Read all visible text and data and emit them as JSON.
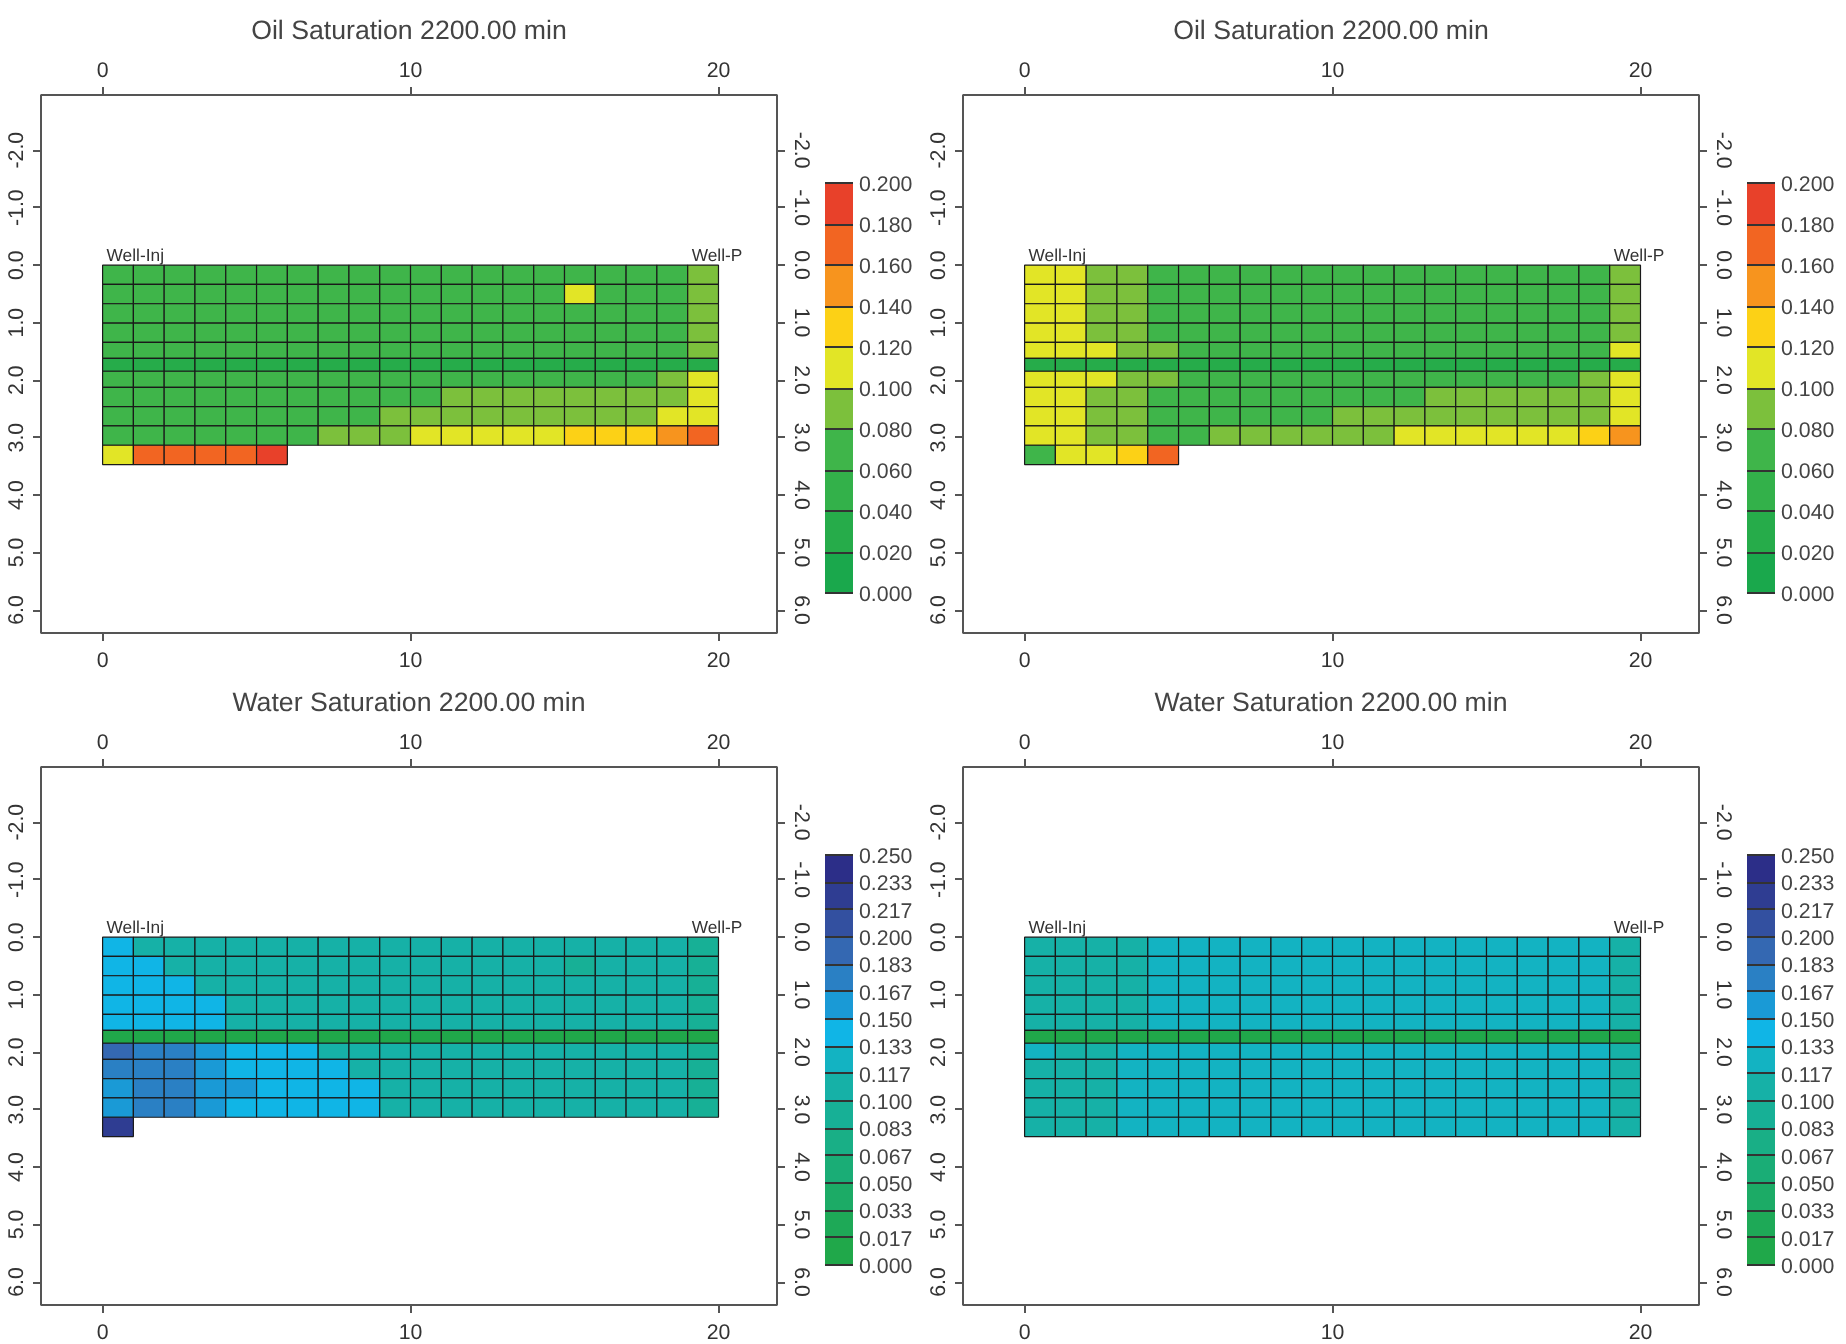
{
  "chart_data": [
    {
      "type": "heatmap",
      "title": "Oil Saturation 2200.00 min",
      "x": [
        0.5,
        1.5,
        2.5,
        3.5,
        4.5,
        5.5,
        6.5,
        7.5,
        8.5,
        9.5,
        10.5,
        11.5,
        12.5,
        13.5,
        14.5,
        15.5,
        16.5,
        17.5,
        18.5,
        19.5
      ],
      "y": [
        0.168,
        0.504,
        0.84,
        1.176,
        1.512,
        1.735,
        1.958,
        2.294,
        2.63,
        2.966,
        3.302
      ],
      "cells": [
        [
          0.07,
          0.07,
          0.07,
          0.07,
          0.07,
          0.07,
          0.07,
          0.07,
          0.07,
          0.07,
          0.07,
          0.07,
          0.07,
          0.07,
          0.07,
          0.07,
          0.07,
          0.07,
          0.07,
          0.09
        ],
        [
          0.07,
          0.07,
          0.07,
          0.07,
          0.07,
          0.07,
          0.07,
          0.07,
          0.07,
          0.07,
          0.07,
          0.07,
          0.07,
          0.07,
          0.07,
          0.11,
          0.07,
          0.07,
          0.07,
          0.09
        ],
        [
          0.07,
          0.07,
          0.07,
          0.07,
          0.07,
          0.07,
          0.07,
          0.07,
          0.07,
          0.07,
          0.07,
          0.07,
          0.07,
          0.07,
          0.07,
          0.07,
          0.07,
          0.07,
          0.07,
          0.09
        ],
        [
          0.07,
          0.07,
          0.07,
          0.07,
          0.07,
          0.07,
          0.07,
          0.07,
          0.07,
          0.07,
          0.07,
          0.07,
          0.07,
          0.07,
          0.07,
          0.07,
          0.07,
          0.07,
          0.07,
          0.09
        ],
        [
          0.07,
          0.07,
          0.07,
          0.07,
          0.07,
          0.07,
          0.07,
          0.07,
          0.07,
          0.07,
          0.07,
          0.07,
          0.07,
          0.07,
          0.07,
          0.07,
          0.07,
          0.07,
          0.07,
          0.09
        ],
        [
          0.03,
          0.03,
          0.03,
          0.03,
          0.03,
          0.03,
          0.03,
          0.03,
          0.03,
          0.03,
          0.03,
          0.03,
          0.03,
          0.03,
          0.03,
          0.03,
          0.03,
          0.03,
          0.03,
          0.03
        ],
        [
          0.07,
          0.07,
          0.07,
          0.07,
          0.07,
          0.07,
          0.07,
          0.07,
          0.07,
          0.07,
          0.07,
          0.07,
          0.07,
          0.07,
          0.07,
          0.07,
          0.07,
          0.07,
          0.09,
          0.11
        ],
        [
          0.07,
          0.07,
          0.07,
          0.07,
          0.07,
          0.07,
          0.07,
          0.07,
          0.07,
          0.07,
          0.07,
          0.09,
          0.09,
          0.09,
          0.09,
          0.09,
          0.09,
          0.09,
          0.09,
          0.11
        ],
        [
          0.07,
          0.07,
          0.07,
          0.07,
          0.07,
          0.07,
          0.07,
          0.07,
          0.07,
          0.09,
          0.09,
          0.09,
          0.09,
          0.09,
          0.09,
          0.09,
          0.09,
          0.09,
          0.11,
          0.11
        ],
        [
          0.07,
          0.07,
          0.07,
          0.07,
          0.07,
          0.07,
          0.07,
          0.09,
          0.09,
          0.09,
          0.11,
          0.11,
          0.11,
          0.11,
          0.11,
          0.13,
          0.13,
          0.13,
          0.15,
          0.17
        ],
        [
          0.11,
          0.17,
          0.17,
          0.17,
          0.17,
          0.19,
          null,
          null,
          null,
          null,
          null,
          null,
          null,
          null,
          null,
          null,
          null,
          null,
          null,
          null
        ]
      ],
      "xlim": [
        -2,
        21.9
      ],
      "xticks": [
        0,
        10,
        20
      ],
      "x2lim": [
        -2,
        21.9
      ],
      "x2ticks": [
        0,
        10,
        20
      ],
      "ylim": [
        6.4,
        -2.96
      ],
      "yticks": [
        {
          "value": -2,
          "label": "-2.0"
        },
        {
          "value": -1,
          "label": "-1.0"
        },
        {
          "value": 0,
          "label": "0.0"
        },
        {
          "value": 1,
          "label": "1.0"
        },
        {
          "value": 2,
          "label": "2.0"
        },
        {
          "value": 3,
          "label": "3.0"
        },
        {
          "value": 4,
          "label": "4.0"
        },
        {
          "value": 5,
          "label": "5.0"
        },
        {
          "value": 6,
          "label": "6.0"
        }
      ],
      "y2lim": [
        6.4,
        -2.96
      ],
      "y2ticks": [
        {
          "value": -2,
          "label": "-2.0"
        },
        {
          "value": -1,
          "label": "-1.0"
        },
        {
          "value": 0,
          "label": "0.0"
        },
        {
          "value": 1,
          "label": "1.0"
        },
        {
          "value": 2,
          "label": "2.0"
        },
        {
          "value": 3,
          "label": "3.0"
        },
        {
          "value": 4,
          "label": "4.0"
        },
        {
          "value": 5,
          "label": "5.0"
        },
        {
          "value": 6,
          "label": "6.0"
        }
      ],
      "clim": [
        0,
        0.2
      ],
      "cticks": [
        {
          "value": 0,
          "label": "0.000"
        },
        {
          "value": 0.02,
          "label": "0.020"
        },
        {
          "value": 0.04,
          "label": "0.040"
        },
        {
          "value": 0.06,
          "label": "0.060"
        },
        {
          "value": 0.08,
          "label": "0.080"
        },
        {
          "value": 0.1,
          "label": "0.100"
        },
        {
          "value": 0.12,
          "label": "0.120"
        },
        {
          "value": 0.14,
          "label": "0.140"
        },
        {
          "value": 0.16,
          "label": "0.160"
        },
        {
          "value": 0.18,
          "label": "0.180"
        },
        {
          "value": 0.2,
          "label": "0.200"
        }
      ],
      "colors": [
        "#1aa84c",
        "#26ac4a",
        "#33b14a",
        "#3fb54a",
        "#7cc03c",
        "#e2e526",
        "#fcd116",
        "#f7941e",
        "#f26522",
        "#e8412a"
      ],
      "annotations": [
        "Well-Inj",
        "Well-P"
      ]
    },
    {
      "type": "heatmap",
      "title": "Oil Saturation 2200.00 min",
      "x": [
        0.5,
        1.5,
        2.5,
        3.5,
        4.5,
        5.5,
        6.5,
        7.5,
        8.5,
        9.5,
        10.5,
        11.5,
        12.5,
        13.5,
        14.5,
        15.5,
        16.5,
        17.5,
        18.5,
        19.5
      ],
      "y": [
        0.168,
        0.504,
        0.84,
        1.176,
        1.512,
        1.735,
        1.958,
        2.294,
        2.63,
        2.966,
        3.302
      ],
      "cells": [
        [
          0.11,
          0.11,
          0.09,
          0.09,
          0.07,
          0.07,
          0.07,
          0.07,
          0.07,
          0.07,
          0.07,
          0.07,
          0.07,
          0.07,
          0.07,
          0.07,
          0.07,
          0.07,
          0.07,
          0.09
        ],
        [
          0.11,
          0.11,
          0.09,
          0.09,
          0.07,
          0.07,
          0.07,
          0.07,
          0.07,
          0.07,
          0.07,
          0.07,
          0.07,
          0.07,
          0.07,
          0.07,
          0.07,
          0.07,
          0.07,
          0.09
        ],
        [
          0.11,
          0.11,
          0.09,
          0.09,
          0.07,
          0.07,
          0.07,
          0.07,
          0.07,
          0.07,
          0.07,
          0.07,
          0.07,
          0.07,
          0.07,
          0.07,
          0.07,
          0.07,
          0.07,
          0.09
        ],
        [
          0.11,
          0.11,
          0.09,
          0.09,
          0.07,
          0.07,
          0.07,
          0.07,
          0.07,
          0.07,
          0.07,
          0.07,
          0.07,
          0.07,
          0.07,
          0.07,
          0.07,
          0.07,
          0.07,
          0.09
        ],
        [
          0.11,
          0.11,
          0.11,
          0.09,
          0.09,
          0.07,
          0.07,
          0.07,
          0.07,
          0.07,
          0.07,
          0.07,
          0.07,
          0.07,
          0.07,
          0.07,
          0.07,
          0.07,
          0.07,
          0.11
        ],
        [
          0.03,
          0.03,
          0.03,
          0.03,
          0.03,
          0.03,
          0.03,
          0.03,
          0.03,
          0.03,
          0.03,
          0.03,
          0.03,
          0.03,
          0.03,
          0.03,
          0.03,
          0.03,
          0.03,
          0.03
        ],
        [
          0.11,
          0.11,
          0.11,
          0.09,
          0.09,
          0.07,
          0.07,
          0.07,
          0.07,
          0.07,
          0.07,
          0.07,
          0.07,
          0.07,
          0.07,
          0.07,
          0.07,
          0.07,
          0.09,
          0.11
        ],
        [
          0.11,
          0.11,
          0.09,
          0.09,
          0.07,
          0.07,
          0.07,
          0.07,
          0.07,
          0.07,
          0.07,
          0.07,
          0.07,
          0.09,
          0.09,
          0.09,
          0.09,
          0.09,
          0.09,
          0.11
        ],
        [
          0.11,
          0.11,
          0.09,
          0.09,
          0.07,
          0.07,
          0.07,
          0.07,
          0.07,
          0.07,
          0.09,
          0.09,
          0.09,
          0.09,
          0.09,
          0.09,
          0.09,
          0.09,
          0.09,
          0.11
        ],
        [
          0.11,
          0.11,
          0.09,
          0.09,
          0.07,
          0.07,
          0.09,
          0.09,
          0.09,
          0.09,
          0.09,
          0.09,
          0.11,
          0.11,
          0.11,
          0.11,
          0.11,
          0.11,
          0.13,
          0.15
        ],
        [
          0.07,
          0.11,
          0.11,
          0.13,
          0.17,
          null,
          null,
          null,
          null,
          null,
          null,
          null,
          null,
          null,
          null,
          null,
          null,
          null,
          null,
          null
        ]
      ],
      "xlim": [
        -2,
        21.9
      ],
      "xticks": [
        0,
        10,
        20
      ],
      "x2lim": [
        -2,
        21.9
      ],
      "x2ticks": [
        0,
        10,
        20
      ],
      "ylim": [
        6.4,
        -2.96
      ],
      "yticks": [
        {
          "value": -2,
          "label": "-2.0"
        },
        {
          "value": -1,
          "label": "-1.0"
        },
        {
          "value": 0,
          "label": "0.0"
        },
        {
          "value": 1,
          "label": "1.0"
        },
        {
          "value": 2,
          "label": "2.0"
        },
        {
          "value": 3,
          "label": "3.0"
        },
        {
          "value": 4,
          "label": "4.0"
        },
        {
          "value": 5,
          "label": "5.0"
        },
        {
          "value": 6,
          "label": "6.0"
        }
      ],
      "y2lim": [
        6.4,
        -2.96
      ],
      "y2ticks": [
        {
          "value": -2,
          "label": "-2.0"
        },
        {
          "value": -1,
          "label": "-1.0"
        },
        {
          "value": 0,
          "label": "0.0"
        },
        {
          "value": 1,
          "label": "1.0"
        },
        {
          "value": 2,
          "label": "2.0"
        },
        {
          "value": 3,
          "label": "3.0"
        },
        {
          "value": 4,
          "label": "4.0"
        },
        {
          "value": 5,
          "label": "5.0"
        },
        {
          "value": 6,
          "label": "6.0"
        }
      ],
      "clim": [
        0,
        0.2
      ],
      "cticks": [
        {
          "value": 0,
          "label": "0.000"
        },
        {
          "value": 0.02,
          "label": "0.020"
        },
        {
          "value": 0.04,
          "label": "0.040"
        },
        {
          "value": 0.06,
          "label": "0.060"
        },
        {
          "value": 0.08,
          "label": "0.080"
        },
        {
          "value": 0.1,
          "label": "0.100"
        },
        {
          "value": 0.12,
          "label": "0.120"
        },
        {
          "value": 0.14,
          "label": "0.140"
        },
        {
          "value": 0.16,
          "label": "0.160"
        },
        {
          "value": 0.18,
          "label": "0.180"
        },
        {
          "value": 0.2,
          "label": "0.200"
        }
      ],
      "colors": [
        "#1aa84c",
        "#26ac4a",
        "#33b14a",
        "#3fb54a",
        "#7cc03c",
        "#e2e526",
        "#fcd116",
        "#f7941e",
        "#f26522",
        "#e8412a"
      ],
      "annotations": [
        "Well-Inj",
        "Well-P"
      ]
    },
    {
      "type": "heatmap",
      "title": "Water Saturation 2200.00 min",
      "x": [
        0.5,
        1.5,
        2.5,
        3.5,
        4.5,
        5.5,
        6.5,
        7.5,
        8.5,
        9.5,
        10.5,
        11.5,
        12.5,
        13.5,
        14.5,
        15.5,
        16.5,
        17.5,
        18.5,
        19.5
      ],
      "y": [
        0.168,
        0.504,
        0.84,
        1.176,
        1.512,
        1.735,
        1.958,
        2.294,
        2.63,
        2.966,
        3.302
      ],
      "cells": [
        [
          0.142,
          0.108,
          0.108,
          0.108,
          0.108,
          0.108,
          0.108,
          0.108,
          0.108,
          0.108,
          0.108,
          0.108,
          0.108,
          0.108,
          0.108,
          0.108,
          0.108,
          0.108,
          0.108,
          0.092
        ],
        [
          0.142,
          0.142,
          0.108,
          0.108,
          0.108,
          0.108,
          0.108,
          0.108,
          0.108,
          0.108,
          0.108,
          0.108,
          0.108,
          0.108,
          0.108,
          0.092,
          0.108,
          0.108,
          0.108,
          0.092
        ],
        [
          0.142,
          0.142,
          0.142,
          0.108,
          0.108,
          0.108,
          0.108,
          0.108,
          0.108,
          0.108,
          0.108,
          0.108,
          0.108,
          0.108,
          0.108,
          0.108,
          0.108,
          0.108,
          0.108,
          0.092
        ],
        [
          0.142,
          0.142,
          0.142,
          0.142,
          0.108,
          0.108,
          0.108,
          0.108,
          0.108,
          0.108,
          0.108,
          0.108,
          0.108,
          0.108,
          0.108,
          0.108,
          0.108,
          0.108,
          0.108,
          0.092
        ],
        [
          0.142,
          0.142,
          0.142,
          0.142,
          0.108,
          0.108,
          0.108,
          0.108,
          0.108,
          0.108,
          0.108,
          0.108,
          0.108,
          0.108,
          0.108,
          0.108,
          0.108,
          0.108,
          0.108,
          0.092
        ],
        [
          0.008,
          0.008,
          0.008,
          0.008,
          0.008,
          0.008,
          0.008,
          0.008,
          0.008,
          0.008,
          0.008,
          0.008,
          0.008,
          0.008,
          0.008,
          0.008,
          0.008,
          0.008,
          0.008,
          0.008
        ],
        [
          0.192,
          0.175,
          0.175,
          0.158,
          0.142,
          0.142,
          0.142,
          0.108,
          0.108,
          0.108,
          0.108,
          0.108,
          0.108,
          0.108,
          0.108,
          0.108,
          0.108,
          0.108,
          0.108,
          0.092
        ],
        [
          0.175,
          0.175,
          0.175,
          0.158,
          0.142,
          0.142,
          0.142,
          0.142,
          0.108,
          0.108,
          0.108,
          0.108,
          0.108,
          0.108,
          0.108,
          0.108,
          0.108,
          0.108,
          0.108,
          0.092
        ],
        [
          0.158,
          0.175,
          0.175,
          0.158,
          0.158,
          0.142,
          0.142,
          0.142,
          0.142,
          0.108,
          0.108,
          0.108,
          0.108,
          0.108,
          0.108,
          0.108,
          0.108,
          0.108,
          0.108,
          0.092
        ],
        [
          0.158,
          0.175,
          0.175,
          0.158,
          0.142,
          0.142,
          0.142,
          0.142,
          0.142,
          0.108,
          0.108,
          0.108,
          0.108,
          0.108,
          0.108,
          0.108,
          0.108,
          0.108,
          0.108,
          0.092
        ],
        [
          0.225,
          null,
          null,
          null,
          null,
          null,
          null,
          null,
          null,
          null,
          null,
          null,
          null,
          null,
          null,
          null,
          null,
          null,
          null,
          null
        ]
      ],
      "xlim": [
        -2,
        21.9
      ],
      "xticks": [
        0,
        10,
        20
      ],
      "x2lim": [
        -2,
        21.9
      ],
      "x2ticks": [
        0,
        10,
        20
      ],
      "ylim": [
        6.4,
        -2.96
      ],
      "yticks": [
        {
          "value": -2,
          "label": "-2.0"
        },
        {
          "value": -1,
          "label": "-1.0"
        },
        {
          "value": 0,
          "label": "0.0"
        },
        {
          "value": 1,
          "label": "1.0"
        },
        {
          "value": 2,
          "label": "2.0"
        },
        {
          "value": 3,
          "label": "3.0"
        },
        {
          "value": 4,
          "label": "4.0"
        },
        {
          "value": 5,
          "label": "5.0"
        },
        {
          "value": 6,
          "label": "6.0"
        }
      ],
      "y2lim": [
        6.4,
        -2.96
      ],
      "y2ticks": [
        {
          "value": -2,
          "label": "-2.0"
        },
        {
          "value": -1,
          "label": "-1.0"
        },
        {
          "value": 0,
          "label": "0.0"
        },
        {
          "value": 1,
          "label": "1.0"
        },
        {
          "value": 2,
          "label": "2.0"
        },
        {
          "value": 3,
          "label": "3.0"
        },
        {
          "value": 4,
          "label": "4.0"
        },
        {
          "value": 5,
          "label": "5.0"
        },
        {
          "value": 6,
          "label": "6.0"
        }
      ],
      "clim": [
        0,
        0.25
      ],
      "cticks": [
        {
          "value": 0,
          "label": "0.000"
        },
        {
          "value": 0.0167,
          "label": "0.017"
        },
        {
          "value": 0.0333,
          "label": "0.033"
        },
        {
          "value": 0.05,
          "label": "0.050"
        },
        {
          "value": 0.0667,
          "label": "0.067"
        },
        {
          "value": 0.0833,
          "label": "0.083"
        },
        {
          "value": 0.1,
          "label": "0.100"
        },
        {
          "value": 0.1167,
          "label": "0.117"
        },
        {
          "value": 0.1333,
          "label": "0.133"
        },
        {
          "value": 0.15,
          "label": "0.150"
        },
        {
          "value": 0.1667,
          "label": "0.167"
        },
        {
          "value": 0.1833,
          "label": "0.183"
        },
        {
          "value": 0.2,
          "label": "0.200"
        },
        {
          "value": 0.2167,
          "label": "0.217"
        },
        {
          "value": 0.2333,
          "label": "0.233"
        },
        {
          "value": 0.25,
          "label": "0.250"
        }
      ],
      "colors": [
        "#20a84a",
        "#1ea957",
        "#1cab66",
        "#1aad76",
        "#19af86",
        "#17b096",
        "#16b1a7",
        "#13b3c2",
        "#10b5e6",
        "#1a9ad6",
        "#2a80c4",
        "#3468b2",
        "#3350a0",
        "#2f3d92",
        "#2c2e88"
      ],
      "annotations": [
        "Well-Inj",
        "Well-P"
      ]
    },
    {
      "type": "heatmap",
      "title": "Water Saturation 2200.00 min",
      "x": [
        0.5,
        1.5,
        2.5,
        3.5,
        4.5,
        5.5,
        6.5,
        7.5,
        8.5,
        9.5,
        10.5,
        11.5,
        12.5,
        13.5,
        14.5,
        15.5,
        16.5,
        17.5,
        18.5,
        19.5
      ],
      "y": [
        0.168,
        0.504,
        0.84,
        1.176,
        1.512,
        1.735,
        1.958,
        2.294,
        2.63,
        2.966,
        3.302
      ],
      "cells": [
        [
          0.108,
          0.108,
          0.108,
          0.108,
          0.125,
          0.125,
          0.125,
          0.125,
          0.125,
          0.125,
          0.125,
          0.125,
          0.125,
          0.125,
          0.125,
          0.125,
          0.125,
          0.125,
          0.125,
          0.108
        ],
        [
          0.108,
          0.108,
          0.108,
          0.108,
          0.125,
          0.125,
          0.125,
          0.125,
          0.125,
          0.125,
          0.125,
          0.125,
          0.125,
          0.125,
          0.125,
          0.125,
          0.125,
          0.125,
          0.125,
          0.108
        ],
        [
          0.108,
          0.108,
          0.108,
          0.108,
          0.125,
          0.125,
          0.125,
          0.125,
          0.125,
          0.125,
          0.125,
          0.125,
          0.125,
          0.125,
          0.125,
          0.125,
          0.125,
          0.125,
          0.125,
          0.108
        ],
        [
          0.108,
          0.108,
          0.108,
          0.108,
          0.125,
          0.125,
          0.125,
          0.125,
          0.125,
          0.125,
          0.125,
          0.125,
          0.125,
          0.125,
          0.125,
          0.125,
          0.125,
          0.125,
          0.125,
          0.108
        ],
        [
          0.108,
          0.108,
          0.108,
          0.108,
          0.125,
          0.125,
          0.125,
          0.125,
          0.125,
          0.125,
          0.125,
          0.125,
          0.125,
          0.125,
          0.125,
          0.125,
          0.125,
          0.125,
          0.125,
          0.108
        ],
        [
          0.008,
          0.008,
          0.008,
          0.008,
          0.008,
          0.008,
          0.008,
          0.008,
          0.008,
          0.008,
          0.008,
          0.008,
          0.008,
          0.008,
          0.008,
          0.008,
          0.008,
          0.008,
          0.008,
          0.008
        ],
        [
          0.125,
          0.108,
          0.108,
          0.125,
          0.125,
          0.125,
          0.125,
          0.125,
          0.125,
          0.125,
          0.125,
          0.125,
          0.125,
          0.125,
          0.125,
          0.125,
          0.125,
          0.125,
          0.125,
          0.108
        ],
        [
          0.108,
          0.108,
          0.108,
          0.125,
          0.125,
          0.125,
          0.125,
          0.125,
          0.125,
          0.125,
          0.125,
          0.125,
          0.125,
          0.125,
          0.125,
          0.125,
          0.125,
          0.125,
          0.125,
          0.108
        ],
        [
          0.108,
          0.108,
          0.108,
          0.125,
          0.125,
          0.125,
          0.125,
          0.125,
          0.125,
          0.125,
          0.125,
          0.125,
          0.125,
          0.125,
          0.125,
          0.125,
          0.125,
          0.125,
          0.125,
          0.108
        ],
        [
          0.108,
          0.108,
          0.108,
          0.125,
          0.125,
          0.125,
          0.125,
          0.125,
          0.125,
          0.125,
          0.125,
          0.125,
          0.125,
          0.125,
          0.125,
          0.125,
          0.125,
          0.125,
          0.125,
          0.108
        ],
        [
          0.108,
          0.108,
          0.108,
          0.125,
          0.125,
          0.125,
          0.125,
          0.125,
          0.125,
          0.125,
          0.125,
          0.125,
          0.125,
          0.125,
          0.125,
          0.125,
          0.125,
          0.125,
          0.125,
          0.108
        ]
      ],
      "xlim": [
        -2,
        21.9
      ],
      "xticks": [
        0,
        10,
        20
      ],
      "x2lim": [
        -2,
        21.9
      ],
      "x2ticks": [
        0,
        10,
        20
      ],
      "ylim": [
        6.4,
        -2.96
      ],
      "yticks": [
        {
          "value": -2,
          "label": "-2.0"
        },
        {
          "value": -1,
          "label": "-1.0"
        },
        {
          "value": 0,
          "label": "0.0"
        },
        {
          "value": 1,
          "label": "1.0"
        },
        {
          "value": 2,
          "label": "2.0"
        },
        {
          "value": 3,
          "label": "3.0"
        },
        {
          "value": 4,
          "label": "4.0"
        },
        {
          "value": 5,
          "label": "5.0"
        },
        {
          "value": 6,
          "label": "6.0"
        }
      ],
      "y2lim": [
        6.4,
        -2.96
      ],
      "y2ticks": [
        {
          "value": -2,
          "label": "-2.0"
        },
        {
          "value": -1,
          "label": "-1.0"
        },
        {
          "value": 0,
          "label": "0.0"
        },
        {
          "value": 1,
          "label": "1.0"
        },
        {
          "value": 2,
          "label": "2.0"
        },
        {
          "value": 3,
          "label": "3.0"
        },
        {
          "value": 4,
          "label": "4.0"
        },
        {
          "value": 5,
          "label": "5.0"
        },
        {
          "value": 6,
          "label": "6.0"
        }
      ],
      "clim": [
        0,
        0.25
      ],
      "cticks": [
        {
          "value": 0,
          "label": "0.000"
        },
        {
          "value": 0.0167,
          "label": "0.017"
        },
        {
          "value": 0.0333,
          "label": "0.033"
        },
        {
          "value": 0.05,
          "label": "0.050"
        },
        {
          "value": 0.0667,
          "label": "0.067"
        },
        {
          "value": 0.0833,
          "label": "0.083"
        },
        {
          "value": 0.1,
          "label": "0.100"
        },
        {
          "value": 0.1167,
          "label": "0.117"
        },
        {
          "value": 0.1333,
          "label": "0.133"
        },
        {
          "value": 0.15,
          "label": "0.150"
        },
        {
          "value": 0.1667,
          "label": "0.167"
        },
        {
          "value": 0.1833,
          "label": "0.183"
        },
        {
          "value": 0.2,
          "label": "0.200"
        },
        {
          "value": 0.2167,
          "label": "0.217"
        },
        {
          "value": 0.2333,
          "label": "0.233"
        },
        {
          "value": 0.25,
          "label": "0.250"
        }
      ],
      "colors": [
        "#20a84a",
        "#1ea957",
        "#1cab66",
        "#1aad76",
        "#19af86",
        "#17b096",
        "#16b1a7",
        "#13b3c2",
        "#10b5e6",
        "#1a9ad6",
        "#2a80c4",
        "#3468b2",
        "#3350a0",
        "#2f3d92",
        "#2c2e88"
      ],
      "annotations": [
        "Well-Inj",
        "Well-P"
      ]
    }
  ]
}
